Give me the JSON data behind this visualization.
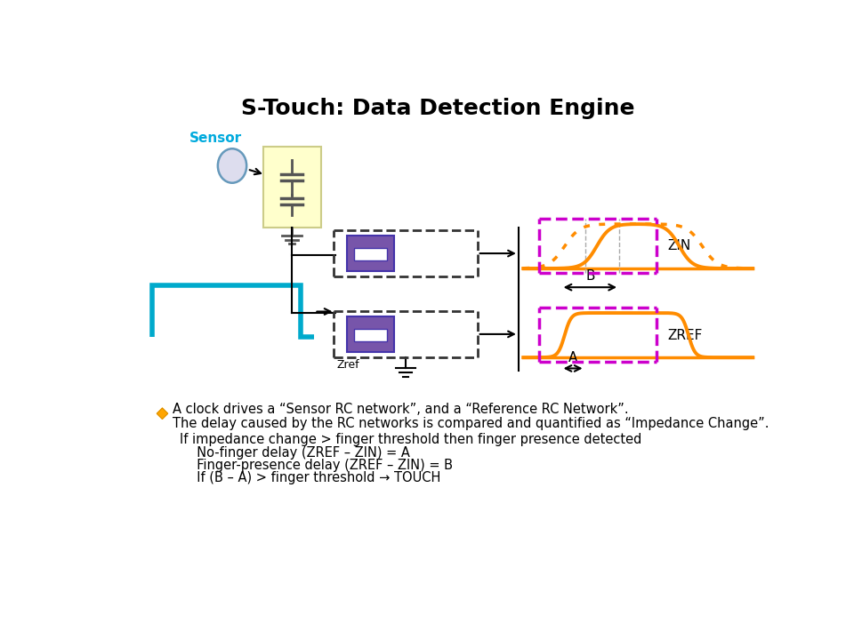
{
  "title": "S-Touch: Data Detection Engine",
  "title_fontsize": 18,
  "title_fontweight": "bold",
  "bg_color": "#ffffff",
  "sensor_label": "Sensor",
  "sensor_label_color": "#00AADD",
  "zin_label": "ZIN",
  "zref_label": "ZREF",
  "zref_comp_label": "Zref",
  "orange_color": "#FF8C00",
  "magenta_color": "#CC00CC",
  "teal_color": "#00AACC",
  "yellow_bg": "#FFFFCC",
  "purple_color": "#7755AA",
  "purple_edge": "#4433AA",
  "dashed_box_color": "#333333",
  "bullet_color": "#FFA500",
  "text_lines": [
    "A clock drives a “Sensor RC network”, and a “Reference RC Network”.",
    "The delay caused by the RC networks is compared and quantified as “Impedance Change”."
  ],
  "sub_lines": [
    "If impedance change > finger threshold then finger presence detected",
    "  No-finger delay (ZREF – ZIN) = A",
    "  Finger-presence delay (ZREF – ZIN) = B",
    "  If (B – A) > finger threshold → TOUCH"
  ]
}
